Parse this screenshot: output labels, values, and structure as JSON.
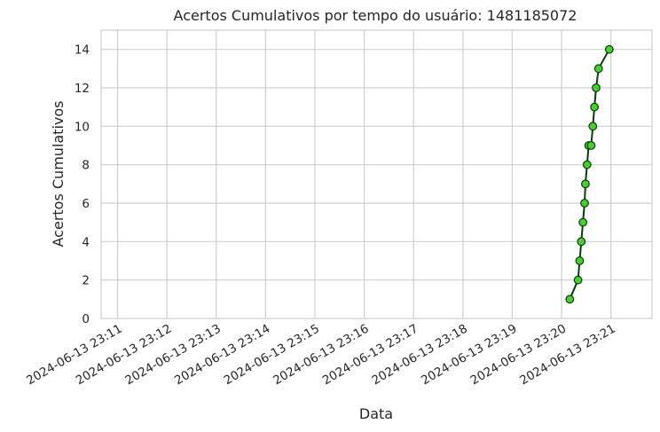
{
  "chart_data": {
    "type": "line",
    "title": "Acertos Cumulativos por tempo do usuário: 1481185072",
    "xlabel": "Data",
    "ylabel": "Acertos Cumulativos",
    "x_axis_type": "datetime",
    "xlim": [
      "2024-06-13 23:10:40",
      "2024-06-13 23:21:50"
    ],
    "ylim": [
      0,
      15
    ],
    "x_ticks": [
      "2024-06-13 23:11",
      "2024-06-13 23:12",
      "2024-06-13 23:13",
      "2024-06-13 23:14",
      "2024-06-13 23:15",
      "2024-06-13 23:16",
      "2024-06-13 23:17",
      "2024-06-13 23:18",
      "2024-06-13 23:19",
      "2024-06-13 23:20",
      "2024-06-13 23:21"
    ],
    "y_ticks": [
      0,
      2,
      4,
      6,
      8,
      10,
      12,
      14
    ],
    "grid": true,
    "legend": "none",
    "series": [
      {
        "line_color": "#0b3d0b",
        "marker_color": "#4ccc33",
        "marker_edge_color": "#0b3d0b",
        "points": [
          {
            "x": "2024-06-13 23:20:10",
            "y": 1
          },
          {
            "x": "2024-06-13 23:20:20",
            "y": 2
          },
          {
            "x": "2024-06-13 23:20:22",
            "y": 3
          },
          {
            "x": "2024-06-13 23:20:24",
            "y": 4
          },
          {
            "x": "2024-06-13 23:20:26",
            "y": 5
          },
          {
            "x": "2024-06-13 23:20:28",
            "y": 6
          },
          {
            "x": "2024-06-13 23:20:29",
            "y": 7
          },
          {
            "x": "2024-06-13 23:20:31",
            "y": 8
          },
          {
            "x": "2024-06-13 23:20:33",
            "y": 9
          },
          {
            "x": "2024-06-13 23:20:36",
            "y": 9
          },
          {
            "x": "2024-06-13 23:20:38",
            "y": 10
          },
          {
            "x": "2024-06-13 23:20:40",
            "y": 11
          },
          {
            "x": "2024-06-13 23:20:42",
            "y": 12
          },
          {
            "x": "2024-06-13 23:20:45",
            "y": 13
          },
          {
            "x": "2024-06-13 23:20:58",
            "y": 14
          }
        ]
      }
    ]
  }
}
